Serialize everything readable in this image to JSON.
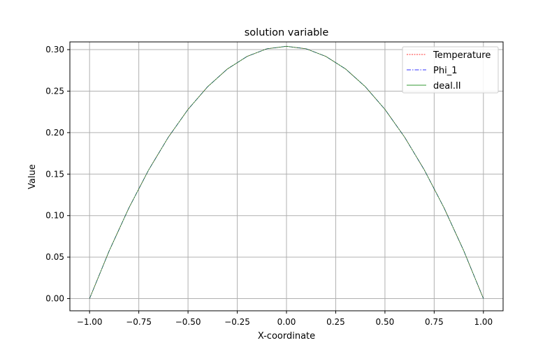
{
  "chart_data": {
    "type": "line",
    "title": "solution variable",
    "xlabel": "X-coordinate",
    "ylabel": "Value",
    "xlim": [
      -1.1,
      1.1
    ],
    "ylim": [
      -0.0147,
      0.3093
    ],
    "xticks": [
      -1.0,
      -0.75,
      -0.5,
      -0.25,
      0.0,
      0.25,
      0.5,
      0.75,
      1.0
    ],
    "xtick_labels": [
      "−1.00",
      "−0.75",
      "−0.50",
      "−0.25",
      "0.00",
      "0.25",
      "0.50",
      "0.75",
      "1.00"
    ],
    "yticks": [
      0.0,
      0.05,
      0.1,
      0.15,
      0.2,
      0.25,
      0.3
    ],
    "ytick_labels": [
      "0.00",
      "0.05",
      "0.10",
      "0.15",
      "0.20",
      "0.25",
      "0.30"
    ],
    "grid": true,
    "legend_position": "top-right",
    "x": [
      -1.0,
      -0.9,
      -0.8,
      -0.7,
      -0.6,
      -0.5,
      -0.4,
      -0.3,
      -0.2,
      -0.1,
      0.0,
      0.1,
      0.2,
      0.3,
      0.4,
      0.5,
      0.6,
      0.7,
      0.8,
      0.9,
      1.0
    ],
    "series": [
      {
        "name": "Temperature",
        "color": "#ff0000",
        "dash": "2,1.5",
        "values": [
          0.0,
          0.0577,
          0.1094,
          0.155,
          0.1945,
          0.228,
          0.2554,
          0.2767,
          0.2918,
          0.301,
          0.304,
          0.301,
          0.2918,
          0.2767,
          0.2554,
          0.228,
          0.1945,
          0.155,
          0.1094,
          0.0577,
          0.0
        ]
      },
      {
        "name": "Phi_1",
        "color": "#0000ff",
        "dash": "6,2,1.5,2",
        "values": [
          0.0,
          0.0577,
          0.1094,
          0.155,
          0.1945,
          0.228,
          0.2554,
          0.2767,
          0.2918,
          0.301,
          0.304,
          0.301,
          0.2918,
          0.2767,
          0.2554,
          0.228,
          0.1945,
          0.155,
          0.1094,
          0.0577,
          0.0
        ]
      },
      {
        "name": "deal.II",
        "color": "#008000",
        "dash": "",
        "values": [
          0.0,
          0.0577,
          0.1094,
          0.155,
          0.1945,
          0.228,
          0.2554,
          0.2767,
          0.2918,
          0.301,
          0.304,
          0.301,
          0.2918,
          0.2767,
          0.2554,
          0.228,
          0.1945,
          0.155,
          0.1094,
          0.0577,
          0.0
        ]
      }
    ]
  }
}
